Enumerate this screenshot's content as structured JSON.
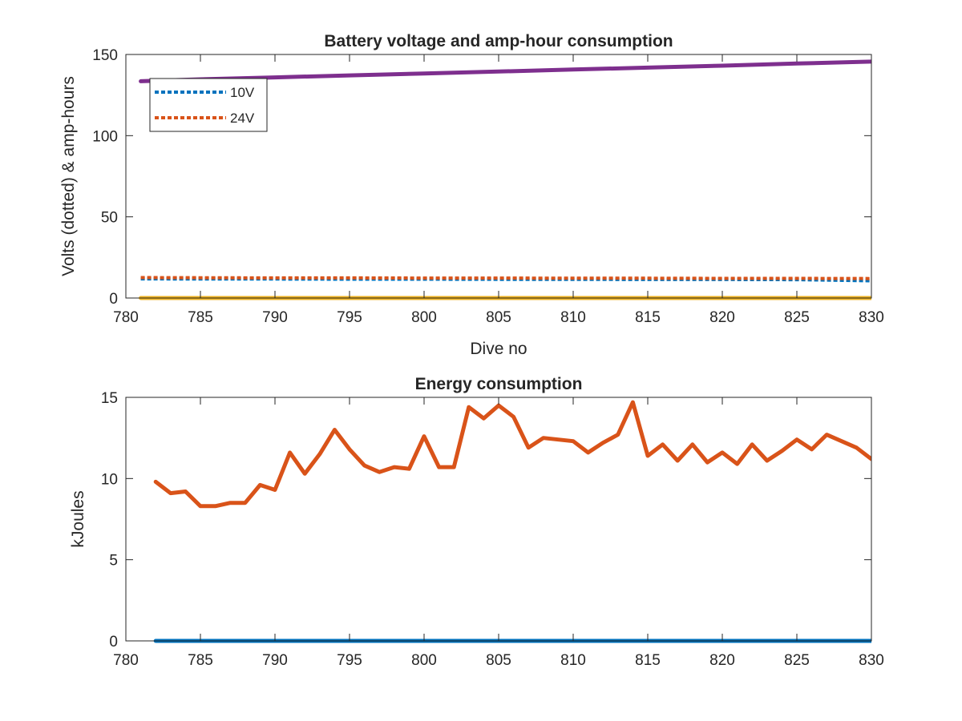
{
  "chart_data": [
    {
      "type": "line",
      "title": "Battery voltage and amp-hour consumption",
      "xlabel": "Dive no",
      "ylabel": "Volts (dotted) & amp-hours",
      "xlim": [
        780,
        830
      ],
      "ylim": [
        0,
        150
      ],
      "xticks": [
        780,
        785,
        790,
        795,
        800,
        805,
        810,
        815,
        820,
        825,
        830
      ],
      "yticks": [
        0,
        50,
        100,
        150
      ],
      "grid": false,
      "legend": {
        "placement": "top-left",
        "entries": [
          "10V",
          "24V"
        ]
      },
      "series": [
        {
          "name": "10V",
          "style": "dotted",
          "color": "#0072bd",
          "x": [
            781,
            785,
            790,
            795,
            800,
            805,
            810,
            815,
            820,
            825,
            830
          ],
          "y": [
            11.8,
            11.7,
            11.7,
            11.6,
            11.6,
            11.5,
            11.5,
            11.4,
            11.4,
            11.3,
            10.6
          ]
        },
        {
          "name": "24V",
          "style": "dotted",
          "color": "#d95319",
          "x": [
            781,
            785,
            790,
            795,
            800,
            805,
            810,
            815,
            820,
            825,
            830
          ],
          "y": [
            12.6,
            12.5,
            12.4,
            12.4,
            12.3,
            12.3,
            12.2,
            12.2,
            12.1,
            12.1,
            12.0
          ]
        },
        {
          "style": "solid",
          "color": "#edb120",
          "x": [
            781,
            830
          ],
          "y": [
            0,
            0
          ]
        },
        {
          "style": "solid",
          "color": "#7e2f8e",
          "x": [
            781,
            785,
            790,
            795,
            800,
            805,
            810,
            815,
            820,
            825,
            830
          ],
          "y": [
            133.5,
            134.7,
            135.9,
            137.1,
            138.3,
            139.5,
            140.7,
            141.9,
            143.1,
            144.4,
            145.6
          ]
        }
      ]
    },
    {
      "type": "line",
      "title": "Energy consumption",
      "xlabel": "",
      "ylabel": "kJoules",
      "xlim": [
        780,
        830
      ],
      "ylim": [
        0,
        15
      ],
      "xticks": [
        780,
        785,
        790,
        795,
        800,
        805,
        810,
        815,
        820,
        825,
        830
      ],
      "yticks": [
        0,
        5,
        10,
        15
      ],
      "grid": false,
      "series": [
        {
          "style": "solid",
          "color": "#0072bd",
          "x": [
            782,
            830
          ],
          "y": [
            0,
            0
          ]
        },
        {
          "style": "solid",
          "color": "#d95319",
          "x": [
            782,
            783,
            784,
            785,
            786,
            787,
            788,
            789,
            790,
            791,
            792,
            793,
            794,
            795,
            796,
            797,
            798,
            799,
            800,
            801,
            802,
            803,
            804,
            805,
            806,
            807,
            808,
            809,
            810,
            811,
            812,
            813,
            814,
            815,
            816,
            817,
            818,
            819,
            820,
            821,
            822,
            823,
            824,
            825,
            826,
            827,
            828,
            829,
            830
          ],
          "y": [
            9.8,
            9.1,
            9.2,
            8.3,
            8.3,
            8.5,
            8.5,
            9.6,
            9.3,
            11.6,
            10.3,
            11.5,
            13.0,
            11.8,
            10.8,
            10.4,
            10.7,
            10.6,
            12.6,
            10.7,
            10.7,
            14.4,
            13.7,
            14.5,
            13.8,
            11.9,
            12.5,
            12.4,
            12.3,
            11.6,
            12.2,
            12.7,
            14.7,
            11.4,
            12.1,
            11.1,
            12.1,
            11.0,
            11.6,
            10.9,
            12.1,
            11.1,
            11.7,
            12.4,
            11.8,
            12.7,
            12.3,
            11.9,
            11.2
          ]
        }
      ]
    }
  ]
}
